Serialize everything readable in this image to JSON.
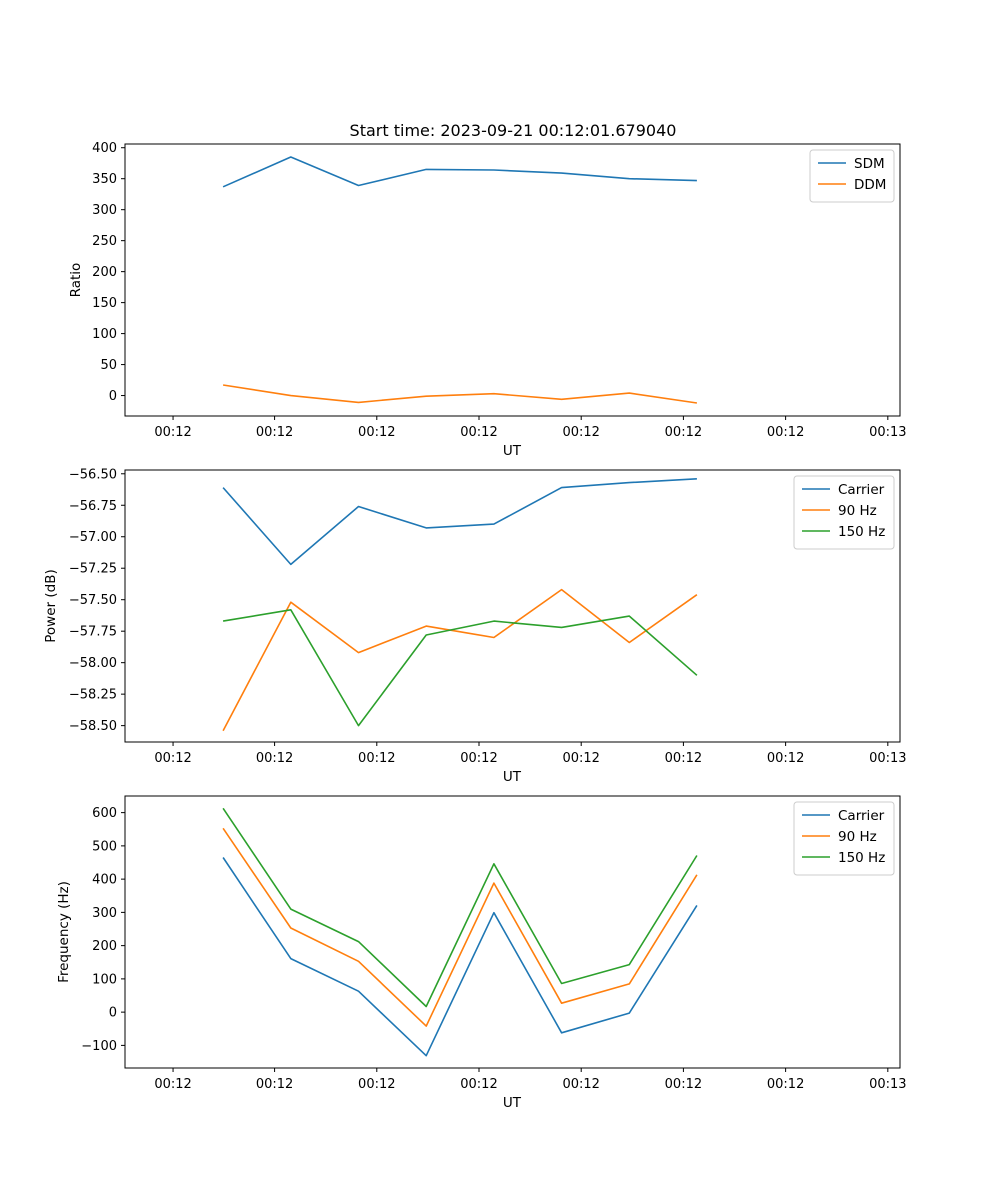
{
  "figure": {
    "title": "Start time: 2023-09-21 00:12:01.679040"
  },
  "chart_data": [
    {
      "type": "line",
      "title": "Start time: 2023-09-21 00:12:01.679040",
      "xlabel": "UT",
      "ylabel": "Ratio",
      "ylim": [
        -33,
        406
      ],
      "xlim": [
        -0.7,
        8.6
      ],
      "x_tick_labels": [
        "00:12",
        "00:12",
        "00:12",
        "00:12",
        "00:12",
        "00:12",
        "00:12"
      ],
      "x_tick_last_label": "00:13",
      "y_ticks": [
        0,
        50,
        100,
        150,
        200,
        250,
        300,
        350,
        400
      ],
      "y_tick_labels": [
        "0",
        "50",
        "100",
        "150",
        "200",
        "250",
        "300",
        "350",
        "400"
      ],
      "legend": "top-right",
      "x": [
        0,
        1,
        2,
        3,
        4,
        5,
        6,
        7
      ],
      "series": [
        {
          "name": "SDM",
          "color": "#1f77b4",
          "values": [
            337,
            385,
            339,
            365,
            364,
            359,
            350,
            347
          ]
        },
        {
          "name": "DDM",
          "color": "#ff7f0e",
          "values": [
            17,
            0,
            -11,
            -1,
            3,
            -6,
            4,
            -12
          ]
        }
      ]
    },
    {
      "type": "line",
      "title": "",
      "xlabel": "UT",
      "ylabel": "Power (dB)",
      "ylim": [
        -58.63,
        -56.47
      ],
      "xlim": [
        -0.7,
        8.6
      ],
      "x_tick_labels": [
        "00:12",
        "00:12",
        "00:12",
        "00:12",
        "00:12",
        "00:12",
        "00:12"
      ],
      "x_tick_last_label": "00:13",
      "y_ticks": [
        -58.5,
        -58.25,
        -58.0,
        -57.75,
        -57.5,
        -57.25,
        -57.0,
        -56.75,
        -56.5
      ],
      "y_tick_labels": [
        "−58.50",
        "−58.25",
        "−58.00",
        "−57.75",
        "−57.50",
        "−57.25",
        "−57.00",
        "−56.75",
        "−56.50"
      ],
      "legend": "top-right",
      "x": [
        0,
        1,
        2,
        3,
        4,
        5,
        6,
        7
      ],
      "series": [
        {
          "name": "Carrier",
          "color": "#1f77b4",
          "values": [
            -56.61,
            -57.22,
            -56.76,
            -56.93,
            -56.9,
            -56.61,
            -56.57,
            -56.54
          ]
        },
        {
          "name": "90 Hz",
          "color": "#ff7f0e",
          "values": [
            -58.54,
            -57.52,
            -57.92,
            -57.71,
            -57.8,
            -57.42,
            -57.84,
            -57.46
          ]
        },
        {
          "name": "150 Hz",
          "color": "#2ca02c",
          "values": [
            -57.67,
            -57.58,
            -58.5,
            -57.78,
            -57.67,
            -57.72,
            -57.63,
            -58.1
          ]
        }
      ]
    },
    {
      "type": "line",
      "title": "",
      "xlabel": "UT",
      "ylabel": "Frequency (Hz)",
      "ylim": [
        -168,
        650
      ],
      "xlim": [
        -0.7,
        8.6
      ],
      "x_tick_labels": [
        "00:12",
        "00:12",
        "00:12",
        "00:12",
        "00:12",
        "00:12",
        "00:12"
      ],
      "x_tick_last_label": "00:13",
      "y_ticks": [
        -100,
        0,
        100,
        200,
        300,
        400,
        500,
        600
      ],
      "y_tick_labels": [
        "−100",
        "0",
        "100",
        "200",
        "300",
        "400",
        "500",
        "600"
      ],
      "legend": "top-right",
      "x": [
        0,
        1,
        2,
        3,
        4,
        5,
        6,
        7
      ],
      "series": [
        {
          "name": "Carrier",
          "color": "#1f77b4",
          "values": [
            465,
            161,
            63,
            -131,
            299,
            -62,
            -3,
            321
          ]
        },
        {
          "name": "90 Hz",
          "color": "#ff7f0e",
          "values": [
            553,
            253,
            153,
            -42,
            388,
            27,
            85,
            413
          ]
        },
        {
          "name": "150 Hz",
          "color": "#2ca02c",
          "values": [
            613,
            310,
            212,
            17,
            446,
            86,
            143,
            471
          ]
        }
      ]
    }
  ]
}
